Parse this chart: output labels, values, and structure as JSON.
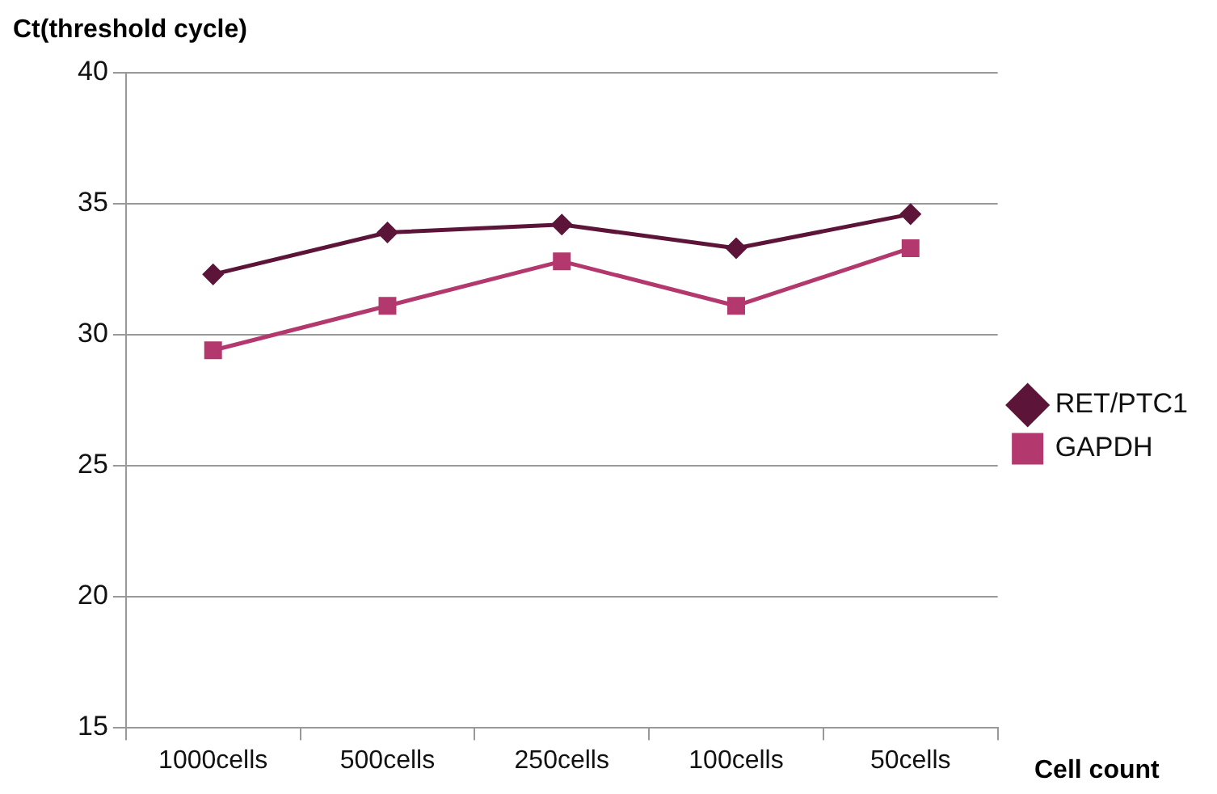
{
  "chart_data": {
    "type": "line",
    "title": "Ct(threshold cycle)",
    "xlabel": "Cell count",
    "categories": [
      "1000cells",
      "500cells",
      "250cells",
      "100cells",
      "50cells"
    ],
    "series": [
      {
        "name": "RET/PTC1",
        "color": "#5c1438",
        "marker": "diamond",
        "values": [
          32.3,
          33.9,
          34.2,
          33.3,
          34.6
        ]
      },
      {
        "name": "GAPDH",
        "color": "#b2386e",
        "marker": "square",
        "values": [
          29.4,
          31.1,
          32.8,
          31.1,
          33.3
        ]
      }
    ],
    "ylim": [
      15,
      40
    ],
    "yticks": [
      15,
      20,
      25,
      30,
      35,
      40
    ],
    "grid": "y",
    "legend": "right"
  }
}
